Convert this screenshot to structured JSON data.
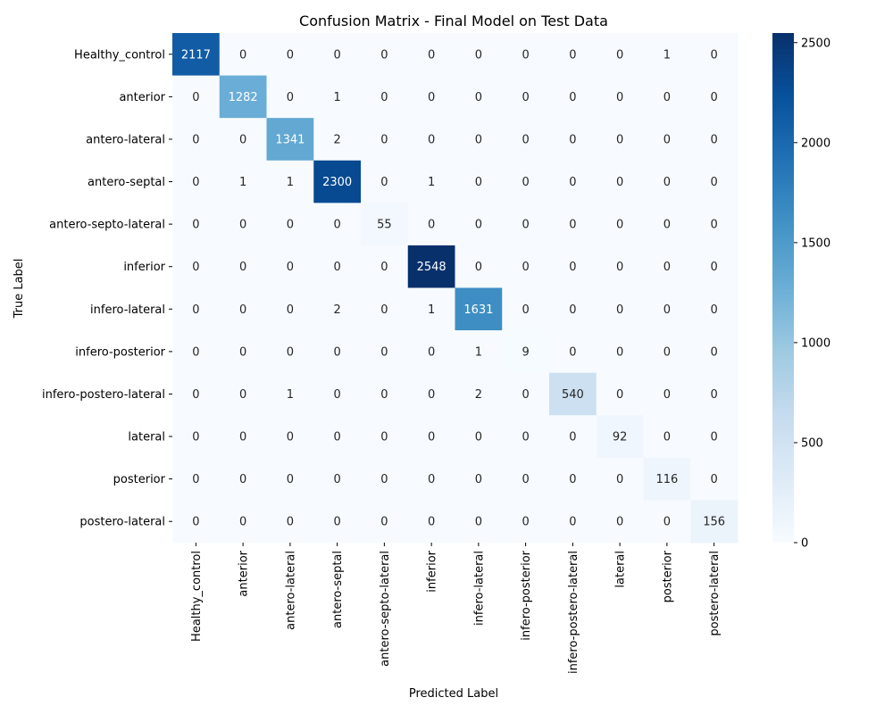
{
  "chart_data": {
    "type": "heatmap",
    "title": "Confusion Matrix - Final Model on Test Data",
    "xlabel": "Predicted Label",
    "ylabel": "True Label",
    "colormap": "Blues",
    "color_range": [
      0,
      2548
    ],
    "row_labels": [
      "Healthy_control",
      "anterior",
      "antero-lateral",
      "antero-septal",
      "antero-septo-lateral",
      "inferior",
      "infero-lateral",
      "infero-posterior",
      "infero-postero-lateral",
      "lateral",
      "posterior",
      "postero-lateral"
    ],
    "col_labels": [
      "Healthy_control",
      "anterior",
      "antero-lateral",
      "antero-septal",
      "antero-septo-lateral",
      "inferior",
      "infero-lateral",
      "infero-posterior",
      "infero-postero-lateral",
      "lateral",
      "posterior",
      "postero-lateral"
    ],
    "matrix": [
      [
        2117,
        0,
        0,
        0,
        0,
        0,
        0,
        0,
        0,
        0,
        1,
        0
      ],
      [
        0,
        1282,
        0,
        1,
        0,
        0,
        0,
        0,
        0,
        0,
        0,
        0
      ],
      [
        0,
        0,
        1341,
        2,
        0,
        0,
        0,
        0,
        0,
        0,
        0,
        0
      ],
      [
        0,
        1,
        1,
        2300,
        0,
        1,
        0,
        0,
        0,
        0,
        0,
        0
      ],
      [
        0,
        0,
        0,
        0,
        55,
        0,
        0,
        0,
        0,
        0,
        0,
        0
      ],
      [
        0,
        0,
        0,
        0,
        0,
        2548,
        0,
        0,
        0,
        0,
        0,
        0
      ],
      [
        0,
        0,
        0,
        2,
        0,
        1,
        1631,
        0,
        0,
        0,
        0,
        0
      ],
      [
        0,
        0,
        0,
        0,
        0,
        0,
        1,
        9,
        0,
        0,
        0,
        0
      ],
      [
        0,
        0,
        1,
        0,
        0,
        0,
        2,
        0,
        540,
        0,
        0,
        0
      ],
      [
        0,
        0,
        0,
        0,
        0,
        0,
        0,
        0,
        0,
        92,
        0,
        0
      ],
      [
        0,
        0,
        0,
        0,
        0,
        0,
        0,
        0,
        0,
        0,
        116,
        0
      ],
      [
        0,
        0,
        0,
        0,
        0,
        0,
        0,
        0,
        0,
        0,
        0,
        156
      ]
    ],
    "colorbar_ticks": [
      0,
      500,
      1000,
      1500,
      2000,
      2500
    ]
  }
}
